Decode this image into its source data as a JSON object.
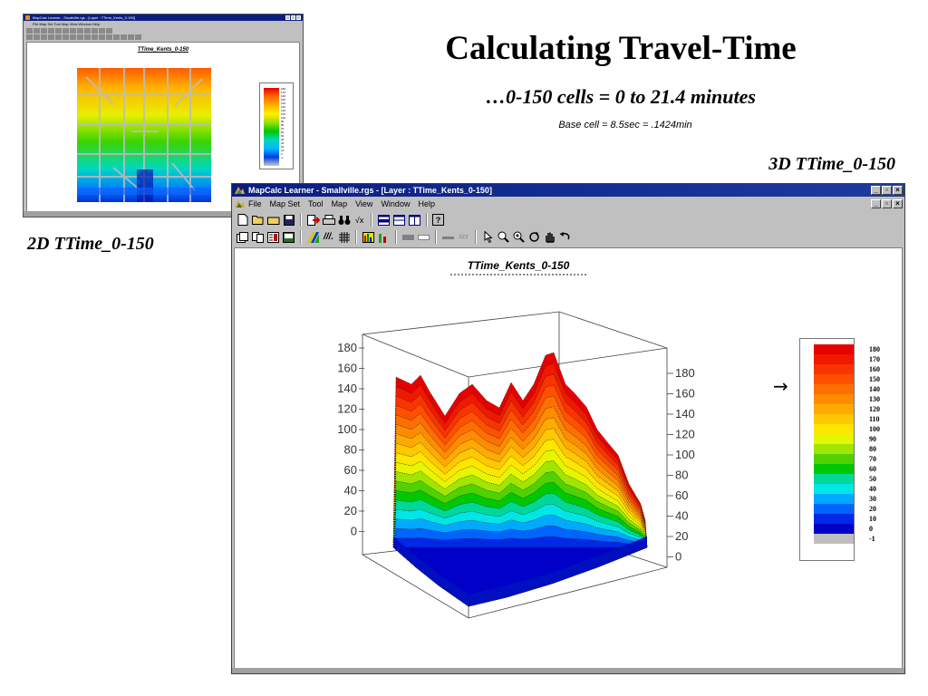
{
  "slide": {
    "title": "Calculating Travel-Time",
    "subtitle": "…0-150 cells = 0 to 21.4 minutes",
    "note": "Base cell = 8.5sec = .1424min",
    "label_3d": "3D TTime_0-150",
    "label_2d": "2D TTime_0-150"
  },
  "small_window": {
    "title": "MapCalc Learner - Smallville.rgs - [Layer : TTime_Kents_0-150]",
    "menu": "File   Map Set   Tool   Map   View   Window   Help",
    "map_title": "TTime_Kents_0-150",
    "legend_ticks": [
      "180",
      "170",
      "160",
      "150",
      "140",
      "130",
      "120",
      "110",
      "100",
      "90",
      "80",
      "70",
      "60",
      "50",
      "40",
      "30",
      "20",
      "10",
      "0",
      "-1"
    ]
  },
  "main_window": {
    "title": "MapCalc Learner - Smallville.rgs - [Layer : TTime_Kents_0-150]",
    "menu": [
      "File",
      "Map Set",
      "Tool",
      "Map",
      "View",
      "Window",
      "Help"
    ],
    "toolbar1_icons": [
      "new-file-icon",
      "open-folder-icon",
      "open-icon",
      "save-icon",
      "export-icon",
      "print-icon",
      "binoculars-icon",
      "sqrt-icon",
      "tile-icon",
      "cascade-icon",
      "split-icon",
      "help-icon"
    ],
    "toolbar2_icons": [
      "2d-view-icon",
      "copy-icon",
      "grid-icon",
      "image-icon",
      "palette-icon",
      "hatch-icon",
      "lattice-icon",
      "plot-icon",
      "bar-icon",
      "flat-icon",
      "flat2-icon",
      "minus-icon",
      "zz-icon",
      "pointer-icon",
      "zoom-out-icon",
      "zoom-in-icon",
      "rotate-icon",
      "hand-icon",
      "undo-icon"
    ],
    "canvas_title": "TTime_Kents_0-150",
    "axis_left_ticks": [
      "180",
      "160",
      "140",
      "120",
      "100",
      "80",
      "60",
      "40",
      "20",
      "0"
    ],
    "axis_right_ticks": [
      "180",
      "160",
      "140",
      "120",
      "100",
      "80",
      "60",
      "40",
      "20",
      "0"
    ],
    "legend": [
      {
        "label": "180",
        "color": "#e60000"
      },
      {
        "label": "170",
        "color": "#f01800"
      },
      {
        "label": "160",
        "color": "#f83400"
      },
      {
        "label": "150",
        "color": "#ff5000"
      },
      {
        "label": "140",
        "color": "#ff6e00"
      },
      {
        "label": "130",
        "color": "#ff8c00"
      },
      {
        "label": "120",
        "color": "#ffaa00"
      },
      {
        "label": "110",
        "color": "#ffc800"
      },
      {
        "label": "100",
        "color": "#ffe600"
      },
      {
        "label": "90",
        "color": "#e6f500"
      },
      {
        "label": "80",
        "color": "#a0e600"
      },
      {
        "label": "70",
        "color": "#50d200"
      },
      {
        "label": "60",
        "color": "#00c800"
      },
      {
        "label": "50",
        "color": "#00d89a"
      },
      {
        "label": "40",
        "color": "#00e6e6"
      },
      {
        "label": "30",
        "color": "#00aaff"
      },
      {
        "label": "20",
        "color": "#0064ff"
      },
      {
        "label": "10",
        "color": "#0028e6"
      },
      {
        "label": "0",
        "color": "#0000c8"
      },
      {
        "label": "-1",
        "color": "#bebebe"
      }
    ]
  }
}
